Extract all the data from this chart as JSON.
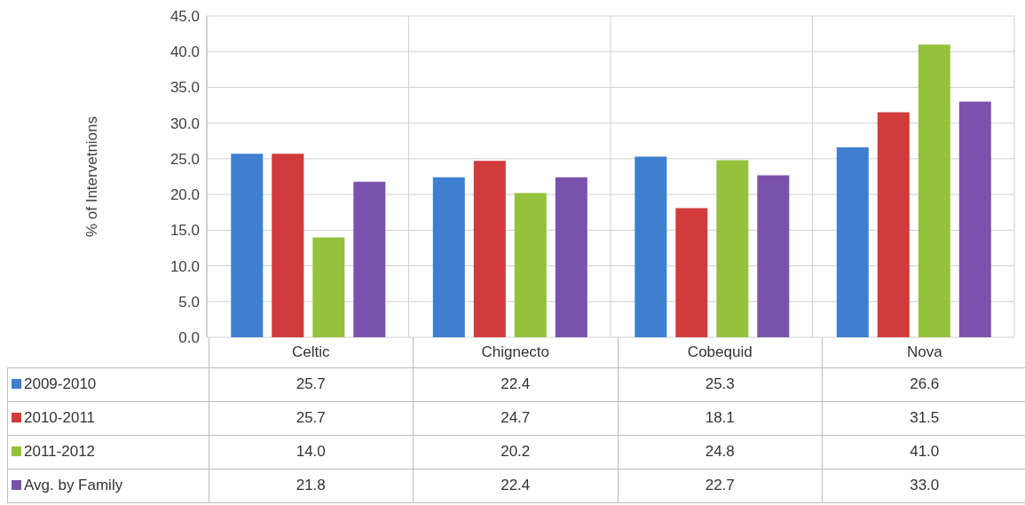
{
  "chart_data": {
    "type": "bar",
    "ylabel": "% of Intervetnions",
    "categories": [
      "Celtic",
      "Chignecto",
      "Cobequid",
      "Nova"
    ],
    "series": [
      {
        "name": "2009-2010",
        "color": "#3f7fd0",
        "values": [
          25.7,
          22.4,
          25.3,
          26.6
        ],
        "value_labels": [
          "25.7",
          "22.4",
          "25.3",
          "26.6"
        ]
      },
      {
        "name": "2010-2011",
        "color": "#d23b3b",
        "values": [
          25.7,
          24.7,
          18.1,
          31.5
        ],
        "value_labels": [
          "25.7",
          "24.7",
          "18.1",
          "31.5"
        ]
      },
      {
        "name": "2011-2012",
        "color": "#95c23d",
        "values": [
          14.0,
          20.2,
          24.8,
          41.0
        ],
        "value_labels": [
          "14.0",
          "20.2",
          "24.8",
          "41.0"
        ]
      },
      {
        "name": "Avg. by Family",
        "color": "#7b52ab",
        "values": [
          21.8,
          22.4,
          22.7,
          33.0
        ],
        "value_labels": [
          "21.8",
          "22.4",
          "22.7",
          "33.0"
        ]
      }
    ],
    "ylim": [
      0,
      45
    ],
    "yticks": [
      {
        "value": 0,
        "label": "0.0"
      },
      {
        "value": 5,
        "label": "5.0"
      },
      {
        "value": 10,
        "label": "10.0"
      },
      {
        "value": 15,
        "label": "15.0"
      },
      {
        "value": 20,
        "label": "20.0"
      },
      {
        "value": 25,
        "label": "25.0"
      },
      {
        "value": 30,
        "label": "30.0"
      },
      {
        "value": 35,
        "label": "35.0"
      },
      {
        "value": 40,
        "label": "40.0"
      },
      {
        "value": 45,
        "label": "45.0"
      }
    ],
    "grid": true,
    "legend": "bottom"
  }
}
